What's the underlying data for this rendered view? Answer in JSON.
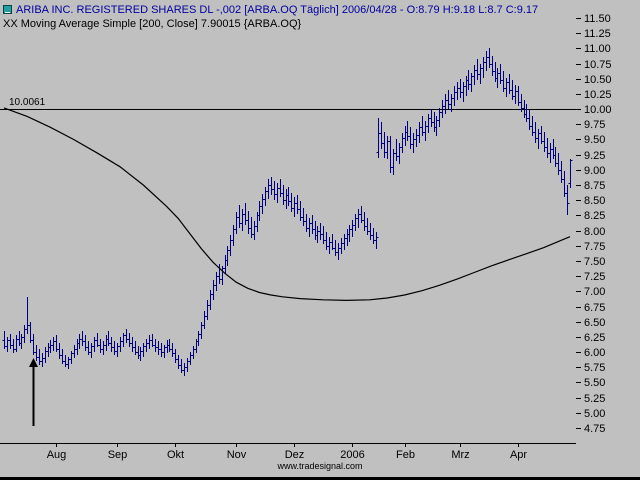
{
  "header": {
    "symbol_line": "ARIBA INC. REGISTERED SHARES DL -,002 [ARBA.OQ Täglich] 2006/04/28 - O:8.79 H:9.18 L:8.7 C:9.17",
    "indicator_line": "XX Moving Average Simple [200, Close] 7.90015 {ARBA.OQ}"
  },
  "footer": {
    "watermark": "www.tradesignal.com"
  },
  "chart_data": {
    "type": "bar",
    "subtype": "ohlc-daily",
    "title": "ARIBA INC. REGISTERED SHARES DL -,002",
    "instrument": "ARBA.OQ",
    "period": "Täglich",
    "date": "2006/04/28",
    "quote": {
      "open": 8.79,
      "high": 9.18,
      "low": 8.7,
      "close": 9.17
    },
    "indicator": {
      "name": "Moving Average Simple",
      "length": 200,
      "source": "Close",
      "value": 7.90015
    },
    "hline": {
      "value": 10.0061,
      "label": "10.0061"
    },
    "ylim": [
      4.6,
      11.6
    ],
    "y_ticks": [
      11.5,
      11.25,
      11.0,
      10.75,
      10.5,
      10.25,
      10.0,
      9.75,
      9.5,
      9.25,
      9.0,
      8.75,
      8.5,
      8.25,
      8.0,
      7.75,
      7.5,
      7.25,
      7.0,
      6.75,
      6.5,
      6.25,
      6.0,
      5.75,
      5.5,
      5.25,
      5.0,
      4.75
    ],
    "x_axis_months": [
      {
        "label": "Aug",
        "index": 18
      },
      {
        "label": "Sep",
        "index": 39
      },
      {
        "label": "Okt",
        "index": 59
      },
      {
        "label": "Nov",
        "index": 80
      },
      {
        "label": "Dez",
        "index": 100
      },
      {
        "label": "2006",
        "index": 120
      },
      {
        "label": "Feb",
        "index": 138
      },
      {
        "label": "Mrz",
        "index": 157
      },
      {
        "label": "Apr",
        "index": 177
      }
    ],
    "bars": [
      [
        6.2,
        6.35,
        6.05,
        6.1
      ],
      [
        6.1,
        6.25,
        6.0,
        6.2
      ],
      [
        6.2,
        6.3,
        6.05,
        6.12
      ],
      [
        6.12,
        6.22,
        5.98,
        6.05
      ],
      [
        6.05,
        6.28,
        6.0,
        6.22
      ],
      [
        6.22,
        6.35,
        6.1,
        6.15
      ],
      [
        6.15,
        6.3,
        6.05,
        6.25
      ],
      [
        6.25,
        6.45,
        6.15,
        6.38
      ],
      [
        6.38,
        6.9,
        6.3,
        6.45
      ],
      [
        6.45,
        6.5,
        6.15,
        6.2
      ],
      [
        6.2,
        6.3,
        5.95,
        6.0
      ],
      [
        6.0,
        6.12,
        5.85,
        5.92
      ],
      [
        5.92,
        6.05,
        5.78,
        5.85
      ],
      [
        5.85,
        5.98,
        5.75,
        5.9
      ],
      [
        5.9,
        6.08,
        5.82,
        6.02
      ],
      [
        6.02,
        6.15,
        5.92,
        6.08
      ],
      [
        6.08,
        6.2,
        5.98,
        6.12
      ],
      [
        6.12,
        6.25,
        6.02,
        6.18
      ],
      [
        6.18,
        6.28,
        6.0,
        6.05
      ],
      [
        6.05,
        6.15,
        5.88,
        5.95
      ],
      [
        5.95,
        6.05,
        5.8,
        5.85
      ],
      [
        5.85,
        5.95,
        5.75,
        5.8
      ],
      [
        5.8,
        5.92,
        5.72,
        5.88
      ],
      [
        5.88,
        6.02,
        5.8,
        5.98
      ],
      [
        5.98,
        6.12,
        5.9,
        6.05
      ],
      [
        6.05,
        6.22,
        5.95,
        6.15
      ],
      [
        6.15,
        6.3,
        6.05,
        6.22
      ],
      [
        6.22,
        6.35,
        6.1,
        6.18
      ],
      [
        6.18,
        6.28,
        6.02,
        6.08
      ],
      [
        6.08,
        6.18,
        5.95,
        6.0
      ],
      [
        6.0,
        6.15,
        5.9,
        6.1
      ],
      [
        6.1,
        6.25,
        6.0,
        6.2
      ],
      [
        6.2,
        6.32,
        6.08,
        6.12
      ],
      [
        6.12,
        6.22,
        5.98,
        6.05
      ],
      [
        6.05,
        6.18,
        5.95,
        6.12
      ],
      [
        6.12,
        6.28,
        6.02,
        6.22
      ],
      [
        6.22,
        6.35,
        6.1,
        6.15
      ],
      [
        6.15,
        6.25,
        6.0,
        6.08
      ],
      [
        6.08,
        6.18,
        5.95,
        6.02
      ],
      [
        6.02,
        6.15,
        5.92,
        6.1
      ],
      [
        6.1,
        6.25,
        6.0,
        6.18
      ],
      [
        6.18,
        6.32,
        6.08,
        6.28
      ],
      [
        6.28,
        6.38,
        6.15,
        6.22
      ],
      [
        6.22,
        6.32,
        6.08,
        6.15
      ],
      [
        6.15,
        6.25,
        6.0,
        6.08
      ],
      [
        6.08,
        6.18,
        5.95,
        6.0
      ],
      [
        6.0,
        6.1,
        5.88,
        5.95
      ],
      [
        5.95,
        6.08,
        5.85,
        6.02
      ],
      [
        6.02,
        6.15,
        5.92,
        6.1
      ],
      [
        6.1,
        6.22,
        6.0,
        6.15
      ],
      [
        6.15,
        6.28,
        6.05,
        6.2
      ],
      [
        6.2,
        6.3,
        6.08,
        6.12
      ],
      [
        6.12,
        6.22,
        6.0,
        6.08
      ],
      [
        6.08,
        6.18,
        5.96,
        6.05
      ],
      [
        6.05,
        6.15,
        5.92,
        6.0
      ],
      [
        6.0,
        6.12,
        5.9,
        6.08
      ],
      [
        6.08,
        6.2,
        5.98,
        6.12
      ],
      [
        6.12,
        6.22,
        6.0,
        6.05
      ],
      [
        6.05,
        6.15,
        5.92,
        5.98
      ],
      [
        5.98,
        6.05,
        5.82,
        5.88
      ],
      [
        5.88,
        5.95,
        5.72,
        5.78
      ],
      [
        5.78,
        5.88,
        5.65,
        5.7
      ],
      [
        5.7,
        5.82,
        5.6,
        5.75
      ],
      [
        5.75,
        5.9,
        5.68,
        5.85
      ],
      [
        5.85,
        6.0,
        5.78,
        5.95
      ],
      [
        5.95,
        6.1,
        5.88,
        6.05
      ],
      [
        6.05,
        6.22,
        5.98,
        6.18
      ],
      [
        6.18,
        6.35,
        6.1,
        6.3
      ],
      [
        6.3,
        6.5,
        6.22,
        6.45
      ],
      [
        6.45,
        6.68,
        6.38,
        6.6
      ],
      [
        6.6,
        6.85,
        6.52,
        6.78
      ],
      [
        6.78,
        7.02,
        6.7,
        6.95
      ],
      [
        6.95,
        7.18,
        6.85,
        7.1
      ],
      [
        7.1,
        7.32,
        7.0,
        7.25
      ],
      [
        7.25,
        7.45,
        7.12,
        7.2
      ],
      [
        7.2,
        7.42,
        7.1,
        7.38
      ],
      [
        7.38,
        7.6,
        7.28,
        7.52
      ],
      [
        7.52,
        7.75,
        7.42,
        7.68
      ],
      [
        7.68,
        7.92,
        7.58,
        7.85
      ],
      [
        7.85,
        8.1,
        7.75,
        8.02
      ],
      [
        8.02,
        8.3,
        7.95,
        8.22
      ],
      [
        8.22,
        8.42,
        8.05,
        8.12
      ],
      [
        8.12,
        8.35,
        8.0,
        8.28
      ],
      [
        8.28,
        8.45,
        8.1,
        8.18
      ],
      [
        8.18,
        8.32,
        7.95,
        8.05
      ],
      [
        8.05,
        8.22,
        7.88,
        7.95
      ],
      [
        7.95,
        8.15,
        7.85,
        8.08
      ],
      [
        8.08,
        8.3,
        7.98,
        8.25
      ],
      [
        8.25,
        8.48,
        8.15,
        8.4
      ],
      [
        8.4,
        8.6,
        8.28,
        8.52
      ],
      [
        8.52,
        8.72,
        8.4,
        8.65
      ],
      [
        8.65,
        8.85,
        8.52,
        8.75
      ],
      [
        8.75,
        8.88,
        8.58,
        8.68
      ],
      [
        8.68,
        8.82,
        8.5,
        8.6
      ],
      [
        8.6,
        8.78,
        8.45,
        8.7
      ],
      [
        8.7,
        8.85,
        8.55,
        8.62
      ],
      [
        8.62,
        8.75,
        8.42,
        8.5
      ],
      [
        8.5,
        8.68,
        8.35,
        8.58
      ],
      [
        8.58,
        8.72,
        8.4,
        8.48
      ],
      [
        8.48,
        8.62,
        8.3,
        8.38
      ],
      [
        8.38,
        8.55,
        8.22,
        8.45
      ],
      [
        8.45,
        8.58,
        8.28,
        8.35
      ],
      [
        8.35,
        8.48,
        8.15,
        8.22
      ],
      [
        8.22,
        8.38,
        8.08,
        8.15
      ],
      [
        8.15,
        8.28,
        7.98,
        8.05
      ],
      [
        8.05,
        8.2,
        7.9,
        8.12
      ],
      [
        8.12,
        8.25,
        7.95,
        8.02
      ],
      [
        8.02,
        8.15,
        7.85,
        7.92
      ],
      [
        7.92,
        8.08,
        7.8,
        8.0
      ],
      [
        8.0,
        8.12,
        7.85,
        7.95
      ],
      [
        7.95,
        8.08,
        7.78,
        7.85
      ],
      [
        7.85,
        7.98,
        7.68,
        7.75
      ],
      [
        7.75,
        7.9,
        7.62,
        7.82
      ],
      [
        7.82,
        7.95,
        7.68,
        7.72
      ],
      [
        7.72,
        7.85,
        7.58,
        7.65
      ],
      [
        7.65,
        7.8,
        7.52,
        7.72
      ],
      [
        7.72,
        7.88,
        7.62,
        7.8
      ],
      [
        7.8,
        7.95,
        7.68,
        7.88
      ],
      [
        7.88,
        8.02,
        7.75,
        7.95
      ],
      [
        7.95,
        8.1,
        7.82,
        8.02
      ],
      [
        8.02,
        8.18,
        7.9,
        8.1
      ],
      [
        8.1,
        8.28,
        8.0,
        8.2
      ],
      [
        8.2,
        8.35,
        8.05,
        8.28
      ],
      [
        8.28,
        8.4,
        8.12,
        8.18
      ],
      [
        8.18,
        8.3,
        8.0,
        8.08
      ],
      [
        8.08,
        8.2,
        7.92,
        8.0
      ],
      [
        8.0,
        8.12,
        7.85,
        7.92
      ],
      [
        7.92,
        8.05,
        7.78,
        7.85
      ],
      [
        7.85,
        7.98,
        7.7,
        7.9
      ],
      [
        9.3,
        9.85,
        9.2,
        9.6
      ],
      [
        9.6,
        9.78,
        9.35,
        9.45
      ],
      [
        9.45,
        9.62,
        9.2,
        9.3
      ],
      [
        9.3,
        9.55,
        9.18,
        9.48
      ],
      [
        9.48,
        9.55,
        8.95,
        9.05
      ],
      [
        9.05,
        9.35,
        8.92,
        9.28
      ],
      [
        9.28,
        9.5,
        9.15,
        9.22
      ],
      [
        9.22,
        9.45,
        9.1,
        9.38
      ],
      [
        9.38,
        9.6,
        9.28,
        9.52
      ],
      [
        9.52,
        9.72,
        9.4,
        9.62
      ],
      [
        9.62,
        9.8,
        9.48,
        9.55
      ],
      [
        9.55,
        9.7,
        9.35,
        9.42
      ],
      [
        9.42,
        9.6,
        9.28,
        9.5
      ],
      [
        9.5,
        9.68,
        9.38,
        9.58
      ],
      [
        9.58,
        9.78,
        9.45,
        9.7
      ],
      [
        9.7,
        9.88,
        9.55,
        9.62
      ],
      [
        9.62,
        9.8,
        9.48,
        9.72
      ],
      [
        9.72,
        9.92,
        9.6,
        9.85
      ],
      [
        9.85,
        10.0,
        9.7,
        9.78
      ],
      [
        9.78,
        9.95,
        9.62,
        9.7
      ],
      [
        9.7,
        9.88,
        9.55,
        9.82
      ],
      [
        9.82,
        10.02,
        9.7,
        9.95
      ],
      [
        9.95,
        10.15,
        9.85,
        10.05
      ],
      [
        10.05,
        10.25,
        9.92,
        10.15
      ],
      [
        10.15,
        10.32,
        10.0,
        10.08
      ],
      [
        10.08,
        10.25,
        9.95,
        10.18
      ],
      [
        10.18,
        10.38,
        10.05,
        10.28
      ],
      [
        10.28,
        10.45,
        10.15,
        10.35
      ],
      [
        10.35,
        10.5,
        10.18,
        10.28
      ],
      [
        10.28,
        10.45,
        10.12,
        10.38
      ],
      [
        10.38,
        10.55,
        10.22,
        10.48
      ],
      [
        10.48,
        10.65,
        10.32,
        10.42
      ],
      [
        10.42,
        10.6,
        10.28,
        10.55
      ],
      [
        10.55,
        10.72,
        10.4,
        10.65
      ],
      [
        10.65,
        10.82,
        10.48,
        10.58
      ],
      [
        10.58,
        10.75,
        10.42,
        10.68
      ],
      [
        10.68,
        10.85,
        10.52,
        10.78
      ],
      [
        10.78,
        10.95,
        10.62,
        10.85
      ],
      [
        10.85,
        11.0,
        10.68,
        10.75
      ],
      [
        10.75,
        10.88,
        10.55,
        10.62
      ],
      [
        10.62,
        10.78,
        10.45,
        10.52
      ],
      [
        10.52,
        10.68,
        10.35,
        10.6
      ],
      [
        10.6,
        10.75,
        10.42,
        10.48
      ],
      [
        10.48,
        10.62,
        10.28,
        10.35
      ],
      [
        10.35,
        10.52,
        10.2,
        10.45
      ],
      [
        10.45,
        10.58,
        10.25,
        10.32
      ],
      [
        10.32,
        10.48,
        10.15,
        10.22
      ],
      [
        10.22,
        10.4,
        10.08,
        10.3
      ],
      [
        10.3,
        10.38,
        10.05,
        10.12
      ],
      [
        10.12,
        10.25,
        9.95,
        10.02
      ],
      [
        10.02,
        10.15,
        9.85,
        9.92
      ],
      [
        9.92,
        10.08,
        9.78,
        9.85
      ],
      [
        9.85,
        9.98,
        9.65,
        9.72
      ],
      [
        9.72,
        9.88,
        9.55,
        9.62
      ],
      [
        9.62,
        9.78,
        9.45,
        9.52
      ],
      [
        9.52,
        9.68,
        9.35,
        9.6
      ],
      [
        9.6,
        9.72,
        9.42,
        9.48
      ],
      [
        9.48,
        9.62,
        9.3,
        9.38
      ],
      [
        9.38,
        9.52,
        9.2,
        9.28
      ],
      [
        9.28,
        9.45,
        9.12,
        9.35
      ],
      [
        9.35,
        9.5,
        9.18,
        9.25
      ],
      [
        9.25,
        9.38,
        9.05,
        9.12
      ],
      [
        9.12,
        9.28,
        8.92,
        9.0
      ],
      [
        9.0,
        9.15,
        8.78,
        8.85
      ],
      [
        8.85,
        8.98,
        8.55,
        8.62
      ],
      [
        8.62,
        8.75,
        8.25,
        8.45
      ],
      [
        8.79,
        9.18,
        8.7,
        9.17
      ]
    ],
    "ma200": [
      [
        0,
        10.02
      ],
      [
        8,
        9.88
      ],
      [
        16,
        9.7
      ],
      [
        24,
        9.5
      ],
      [
        32,
        9.28
      ],
      [
        40,
        9.05
      ],
      [
        48,
        8.75
      ],
      [
        56,
        8.4
      ],
      [
        60,
        8.2
      ],
      [
        64,
        7.95
      ],
      [
        68,
        7.7
      ],
      [
        72,
        7.48
      ],
      [
        76,
        7.3
      ],
      [
        80,
        7.15
      ],
      [
        84,
        7.05
      ],
      [
        88,
        6.98
      ],
      [
        92,
        6.94
      ],
      [
        96,
        6.91
      ],
      [
        102,
        6.88
      ],
      [
        110,
        6.86
      ],
      [
        118,
        6.85
      ],
      [
        126,
        6.86
      ],
      [
        132,
        6.89
      ],
      [
        138,
        6.94
      ],
      [
        144,
        7.01
      ],
      [
        150,
        7.1
      ],
      [
        156,
        7.2
      ],
      [
        162,
        7.31
      ],
      [
        168,
        7.42
      ],
      [
        174,
        7.52
      ],
      [
        180,
        7.62
      ],
      [
        186,
        7.72
      ],
      [
        190,
        7.8
      ],
      [
        193,
        7.86
      ],
      [
        195,
        7.9
      ]
    ],
    "annotations": [
      {
        "type": "arrow-up",
        "index": 10,
        "tip_value": 5.9,
        "tail_value": 4.78
      }
    ],
    "legend_position": "none",
    "grid": false,
    "colors": {
      "background": "#c0c0c0",
      "bar": "#000080",
      "ma": "#000000",
      "hline": "#000000",
      "title": "#0000a0",
      "axis_text": "#000000"
    }
  }
}
